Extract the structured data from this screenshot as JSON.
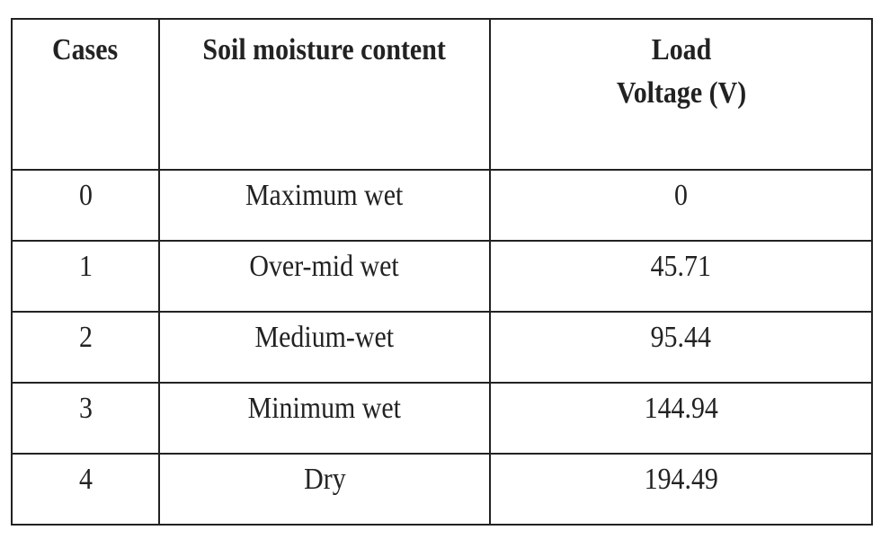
{
  "table": {
    "header": [
      "Cases",
      "Soil moisture content",
      "Load Voltage (V)"
    ],
    "rows": [
      [
        0,
        "Maximum wet",
        0
      ],
      [
        1,
        "Over-mid wet",
        45.71
      ],
      [
        2,
        "Medium-wet",
        95.44
      ],
      [
        3,
        "Minimum wet",
        144.94
      ],
      [
        4,
        "Dry",
        194.49
      ]
    ]
  }
}
